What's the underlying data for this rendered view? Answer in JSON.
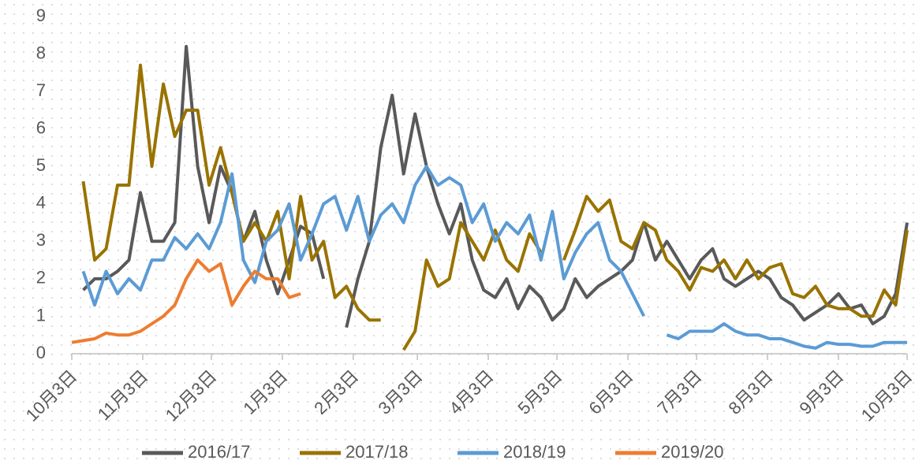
{
  "chart_data": {
    "type": "line",
    "x": [
      0,
      5,
      10,
      15,
      20,
      25,
      30,
      35,
      40,
      45,
      50,
      55,
      60,
      65,
      70,
      75,
      80,
      85,
      90,
      95,
      100,
      105,
      110,
      115,
      120,
      125,
      130,
      135,
      140,
      145,
      150,
      155,
      160,
      165,
      170,
      175,
      180,
      185,
      190,
      195,
      200,
      205,
      210,
      215,
      220,
      225,
      230,
      235,
      240,
      245,
      250,
      255,
      260,
      265,
      270,
      275,
      280,
      285,
      290,
      295,
      300,
      305,
      310,
      315,
      320,
      325,
      330,
      335,
      340,
      345,
      350,
      355,
      360,
      365
    ],
    "xlim": [
      0,
      365
    ],
    "xticks": [
      {
        "value": 0,
        "label": "10月3日"
      },
      {
        "value": 31,
        "label": "11月3日"
      },
      {
        "value": 61,
        "label": "12月3日"
      },
      {
        "value": 92,
        "label": "1月3日"
      },
      {
        "value": 123,
        "label": "2月3日"
      },
      {
        "value": 151,
        "label": "3月3日"
      },
      {
        "value": 182,
        "label": "4月3日"
      },
      {
        "value": 212,
        "label": "5月3日"
      },
      {
        "value": 243,
        "label": "6月3日"
      },
      {
        "value": 273,
        "label": "7月3日"
      },
      {
        "value": 304,
        "label": "8月3日"
      },
      {
        "value": 335,
        "label": "9月3日"
      },
      {
        "value": 365,
        "label": "10月3日"
      }
    ],
    "ylim": [
      0,
      9
    ],
    "yticks": [
      0,
      1,
      2,
      3,
      4,
      5,
      6,
      7,
      8,
      9
    ],
    "legend": "bottom",
    "series": [
      {
        "name": "2016/17",
        "color": "#595959",
        "values": [
          null,
          1.7,
          2,
          2,
          2.2,
          2.5,
          4.3,
          3,
          3,
          3.5,
          8.2,
          5,
          3.5,
          5,
          4.3,
          3,
          3.8,
          2.5,
          1.6,
          2.5,
          3.4,
          3.2,
          2,
          null,
          0.7,
          2,
          3,
          5.5,
          6.9,
          4.8,
          6.4,
          5,
          4,
          3.2,
          4,
          2.5,
          1.7,
          1.5,
          2,
          1.2,
          1.8,
          1.5,
          0.9,
          1.2,
          2,
          1.5,
          1.8,
          2,
          2.2,
          2.5,
          3.5,
          2.5,
          3,
          2.5,
          2,
          2.5,
          2.8,
          2,
          1.8,
          2,
          2.2,
          2,
          1.5,
          1.3,
          0.9,
          1.1,
          1.3,
          1.6,
          1.2,
          1.3,
          0.8,
          1,
          1.6,
          3.5
        ]
      },
      {
        "name": "2017/18",
        "color": "#997300",
        "values": [
          null,
          4.6,
          2.5,
          2.8,
          4.5,
          4.5,
          7.7,
          5,
          7.2,
          5.8,
          6.5,
          6.5,
          4.5,
          5.5,
          4.3,
          3,
          3.5,
          3,
          3.8,
          2,
          4.2,
          2.5,
          3,
          1.5,
          1.8,
          1.2,
          0.9,
          0.9,
          null,
          0.1,
          0.6,
          2.5,
          1.8,
          2,
          3.5,
          3,
          2.5,
          3.3,
          2.5,
          2.2,
          3.2,
          2.7,
          null,
          2.5,
          3.3,
          4.2,
          3.8,
          4.1,
          3,
          2.8,
          3.5,
          3.3,
          2.5,
          2.2,
          1.7,
          2.3,
          2.2,
          2.5,
          2,
          2.5,
          2,
          2.3,
          2.4,
          1.6,
          1.5,
          1.8,
          1.3,
          1.2,
          1.2,
          1,
          1,
          1.7,
          1.3,
          3.3
        ]
      },
      {
        "name": "2018/19",
        "color": "#5b9bd5",
        "values": [
          null,
          2.2,
          1.3,
          2.2,
          1.6,
          2,
          1.7,
          2.5,
          2.5,
          3.1,
          2.8,
          3.2,
          2.8,
          3.5,
          4.8,
          2.5,
          1.9,
          3,
          3.3,
          4,
          2.5,
          3.2,
          4,
          4.2,
          3.3,
          4.2,
          3,
          3.7,
          4,
          3.5,
          4.5,
          5,
          4.5,
          4.7,
          4.5,
          3.5,
          4,
          3,
          3.5,
          3.2,
          3.7,
          2.5,
          3.8,
          2,
          2.7,
          3.2,
          3.5,
          2.5,
          2.2,
          1.6,
          1,
          null,
          0.5,
          0.4,
          0.6,
          0.6,
          0.6,
          0.8,
          0.6,
          0.5,
          0.5,
          0.4,
          0.4,
          0.3,
          0.2,
          0.15,
          0.3,
          0.25,
          0.25,
          0.2,
          0.2,
          0.3,
          0.3,
          0.3
        ]
      },
      {
        "name": "2019/20",
        "color": "#ed7d31",
        "values": [
          0.3,
          0.35,
          0.4,
          0.55,
          0.5,
          0.5,
          0.6,
          0.8,
          1,
          1.3,
          2,
          2.5,
          2.2,
          2.4,
          1.3,
          1.8,
          2.2,
          2,
          2,
          1.5,
          1.6,
          null,
          null,
          null,
          null,
          null,
          null,
          null,
          null,
          null,
          null,
          null,
          null,
          null,
          null,
          null,
          null,
          null,
          null,
          null,
          null,
          null,
          null,
          null,
          null,
          null,
          null,
          null,
          null,
          null,
          null,
          null,
          null,
          null,
          null,
          null,
          null,
          null,
          null,
          null,
          null,
          null,
          null,
          null,
          null,
          null,
          null,
          null,
          null,
          null,
          null,
          null,
          null,
          null
        ]
      }
    ]
  }
}
